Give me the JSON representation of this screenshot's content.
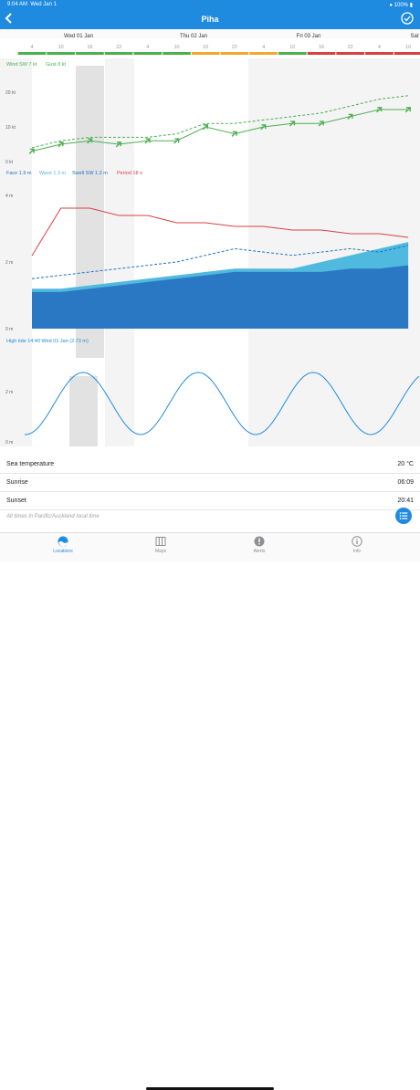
{
  "status_bar": {
    "time": "9:04 AM",
    "date": "Wed Jan 1",
    "battery": "100%"
  },
  "nav": {
    "title": "Piha"
  },
  "days": [
    {
      "label": "Wed 01 Jan",
      "center": 86
    },
    {
      "label": "Thu 02 Jan",
      "center": 212
    },
    {
      "label": "Fri 03 Jan",
      "center": 338
    },
    {
      "label": "Sat",
      "center": 454
    }
  ],
  "hour_ticks": [
    "4",
    "10",
    "16",
    "22",
    "4",
    "10",
    "16",
    "22",
    "4",
    "10",
    "16",
    "22",
    "4",
    "10"
  ],
  "rating_colors": [
    "#4caf50",
    "#4caf50",
    "#4caf50",
    "#4caf50",
    "#4caf50",
    "#4caf50",
    "#f0a830",
    "#f0a830",
    "#f0a830",
    "#4caf50",
    "#d94040",
    "#d94040",
    "#d94040",
    "#d94040"
  ],
  "wind": {
    "legend": {
      "wind": "Wind SW 7 kt",
      "gust": "Gust 8 kt"
    },
    "axis": [
      "20 kt",
      "10 kt",
      "0 kt"
    ],
    "wind_kt": [
      3,
      5,
      6,
      5,
      6,
      6,
      10,
      8,
      10,
      11,
      11,
      13,
      15,
      15
    ],
    "gust_kt": [
      4,
      6,
      7,
      7,
      7,
      8,
      11,
      11,
      12,
      13,
      14,
      16,
      18,
      19
    ]
  },
  "waves": {
    "legend": {
      "face": "Face 1.9 m",
      "wave": "Wave 1.3 m",
      "swell": "Swell SW 1.2 m",
      "period": "Period 18 s"
    },
    "axis": [
      "4 m",
      "2 m",
      "0 m"
    ],
    "period_s": [
      20,
      33,
      33,
      31,
      31,
      29,
      29,
      28,
      28,
      27,
      27,
      26,
      26,
      25
    ],
    "face_m": [
      1.5,
      1.6,
      1.7,
      1.8,
      1.9,
      2.0,
      2.2,
      2.4,
      2.3,
      2.2,
      2.3,
      2.4,
      2.3,
      2.5
    ],
    "wave_m": [
      1.2,
      1.2,
      1.3,
      1.4,
      1.5,
      1.6,
      1.7,
      1.8,
      1.8,
      1.8,
      2.0,
      2.2,
      2.4,
      2.6
    ],
    "swell_m": [
      1.1,
      1.1,
      1.2,
      1.3,
      1.4,
      1.5,
      1.6,
      1.7,
      1.7,
      1.7,
      1.7,
      1.8,
      1.8,
      1.9
    ]
  },
  "tide": {
    "label": "High tide 14:40 Wed 01 Jan (2.73 m)",
    "axis": [
      "2 m",
      "0 m"
    ]
  },
  "info": [
    {
      "label": "Sea temperature",
      "value": "20 °C"
    },
    {
      "label": "Sunrise",
      "value": "06:09"
    },
    {
      "label": "Sunset",
      "value": "20:41"
    }
  ],
  "footnote": "All times in Pacific/Auckland local time",
  "tabs": [
    {
      "label": "Locations",
      "icon": "locations-icon"
    },
    {
      "label": "Maps",
      "icon": "maps-icon"
    },
    {
      "label": "Alerts",
      "icon": "alerts-icon"
    },
    {
      "label": "Info",
      "icon": "info-icon"
    }
  ],
  "colors": {
    "accent": "#1f8be0",
    "wind": "#4caf50",
    "period": "#d94040",
    "face": "#1f72c9",
    "wave": "#4fb9de",
    "swell": "#2a78c4"
  }
}
